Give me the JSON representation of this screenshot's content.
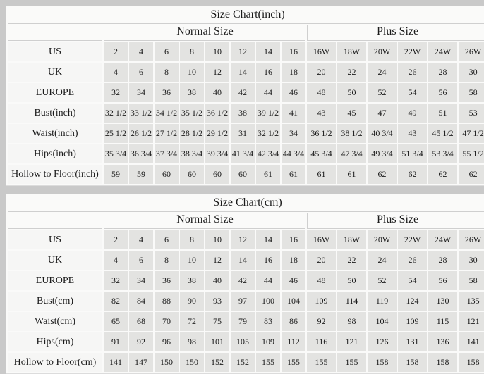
{
  "colors": {
    "page_background": "#c9c9c9",
    "panel": "#fafaf9",
    "label_cell": "#f6f6f5",
    "data_cell": "#e3e3e1",
    "hairline": "#cfcfcf",
    "text": "#1b1b1b"
  },
  "chart_data": [
    {
      "type": "table",
      "title": "Size Chart(inch)",
      "column_groups": [
        {
          "label": "Normal Size",
          "span": 8
        },
        {
          "label": "Plus Size",
          "span": 6
        }
      ],
      "normal_columns": [
        "2",
        "4",
        "6",
        "8",
        "10",
        "12",
        "14",
        "16"
      ],
      "plus_columns": [
        "16W",
        "18W",
        "20W",
        "22W",
        "24W",
        "26W"
      ],
      "rows": [
        {
          "label": "US",
          "values": [
            "2",
            "4",
            "6",
            "8",
            "10",
            "12",
            "14",
            "16",
            "16W",
            "18W",
            "20W",
            "22W",
            "24W",
            "26W"
          ]
        },
        {
          "label": "UK",
          "values": [
            "4",
            "6",
            "8",
            "10",
            "12",
            "14",
            "16",
            "18",
            "20",
            "22",
            "24",
            "26",
            "28",
            "30"
          ]
        },
        {
          "label": "EUROPE",
          "values": [
            "32",
            "34",
            "36",
            "38",
            "40",
            "42",
            "44",
            "46",
            "48",
            "50",
            "52",
            "54",
            "56",
            "58"
          ]
        },
        {
          "label": "Bust(inch)",
          "values": [
            "32 1/2",
            "33 1/2",
            "34 1/2",
            "35 1/2",
            "36 1/2",
            "38",
            "39 1/2",
            "41",
            "43",
            "45",
            "47",
            "49",
            "51",
            "53"
          ]
        },
        {
          "label": "Waist(inch)",
          "values": [
            "25 1/2",
            "26 1/2",
            "27 1/2",
            "28 1/2",
            "29 1/2",
            "31",
            "32 1/2",
            "34",
            "36 1/2",
            "38 1/2",
            "40 3/4",
            "43",
            "45 1/2",
            "47 1/2"
          ]
        },
        {
          "label": "Hips(inch)",
          "values": [
            "35 3/4",
            "36 3/4",
            "37 3/4",
            "38 3/4",
            "39 3/4",
            "41 3/4",
            "42 3/4",
            "44 3/4",
            "45 3/4",
            "47 3/4",
            "49 3/4",
            "51 3/4",
            "53 3/4",
            "55 1/2"
          ]
        },
        {
          "label": "Hollow to Floor(inch)",
          "values": [
            "59",
            "59",
            "60",
            "60",
            "60",
            "60",
            "61",
            "61",
            "61",
            "61",
            "62",
            "62",
            "62",
            "62"
          ]
        }
      ]
    },
    {
      "type": "table",
      "title": "Size Chart(cm)",
      "column_groups": [
        {
          "label": "Normal Size",
          "span": 8
        },
        {
          "label": "Plus Size",
          "span": 6
        }
      ],
      "normal_columns": [
        "2",
        "4",
        "6",
        "8",
        "10",
        "12",
        "14",
        "16"
      ],
      "plus_columns": [
        "16W",
        "18W",
        "20W",
        "22W",
        "24W",
        "26W"
      ],
      "rows": [
        {
          "label": "US",
          "values": [
            "2",
            "4",
            "6",
            "8",
            "10",
            "12",
            "14",
            "16",
            "16W",
            "18W",
            "20W",
            "22W",
            "24W",
            "26W"
          ]
        },
        {
          "label": "UK",
          "values": [
            "4",
            "6",
            "8",
            "10",
            "12",
            "14",
            "16",
            "18",
            "20",
            "22",
            "24",
            "26",
            "28",
            "30"
          ]
        },
        {
          "label": "EUROPE",
          "values": [
            "32",
            "34",
            "36",
            "38",
            "40",
            "42",
            "44",
            "46",
            "48",
            "50",
            "52",
            "54",
            "56",
            "58"
          ]
        },
        {
          "label": "Bust(cm)",
          "values": [
            "82",
            "84",
            "88",
            "90",
            "93",
            "97",
            "100",
            "104",
            "109",
            "114",
            "119",
            "124",
            "130",
            "135"
          ]
        },
        {
          "label": "Waist(cm)",
          "values": [
            "65",
            "68",
            "70",
            "72",
            "75",
            "79",
            "83",
            "86",
            "92",
            "98",
            "104",
            "109",
            "115",
            "121"
          ]
        },
        {
          "label": "Hips(cm)",
          "values": [
            "91",
            "92",
            "96",
            "98",
            "101",
            "105",
            "109",
            "112",
            "116",
            "121",
            "126",
            "131",
            "136",
            "141"
          ]
        },
        {
          "label": "Hollow to Floor(cm)",
          "values": [
            "141",
            "147",
            "150",
            "150",
            "152",
            "152",
            "155",
            "155",
            "155",
            "155",
            "158",
            "158",
            "158",
            "158"
          ]
        }
      ]
    }
  ]
}
